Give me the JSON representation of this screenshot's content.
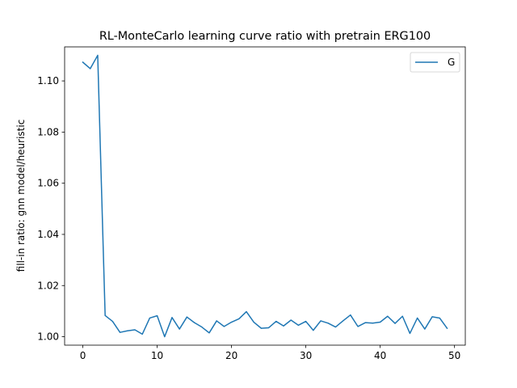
{
  "chart_data": {
    "type": "line",
    "title": "RL-MonteCarlo learning curve ratio with pretrain ERG100",
    "xlabel": "",
    "ylabel": "fill-in ratio: gnn model/heuristic",
    "xlim": [
      -2.45,
      51.45
    ],
    "ylim": [
      0.9967,
      1.1133
    ],
    "xticks": [
      0,
      10,
      20,
      30,
      40,
      50
    ],
    "yticks": [
      1.0,
      1.02,
      1.04,
      1.06,
      1.08,
      1.1
    ],
    "ytick_labels": [
      "1.00",
      "1.02",
      "1.04",
      "1.06",
      "1.08",
      "1.10"
    ],
    "grid": false,
    "legend_position": "top-right",
    "series": [
      {
        "name": "G",
        "color": "#1f77b4",
        "x": [
          0,
          1,
          2,
          3,
          4,
          5,
          6,
          7,
          8,
          9,
          10,
          11,
          12,
          13,
          14,
          15,
          16,
          17,
          18,
          19,
          20,
          21,
          22,
          23,
          24,
          25,
          26,
          27,
          28,
          29,
          30,
          31,
          32,
          33,
          34,
          35,
          36,
          37,
          38,
          39,
          40,
          41,
          42,
          43,
          44,
          45,
          46,
          47,
          48,
          49
        ],
        "values": [
          1.1073,
          1.1048,
          1.11,
          1.0083,
          1.006,
          1.0017,
          1.0023,
          1.0027,
          1.001,
          1.0073,
          1.0082,
          1.0,
          1.0075,
          1.003,
          1.0077,
          1.0055,
          1.0038,
          1.0015,
          1.0062,
          1.004,
          1.0057,
          1.007,
          1.0098,
          1.0057,
          1.0033,
          1.0035,
          1.006,
          1.0042,
          1.0065,
          1.0045,
          1.006,
          1.0025,
          1.0062,
          1.0053,
          1.0038,
          1.0062,
          1.0085,
          1.004,
          1.0055,
          1.0053,
          1.0057,
          1.008,
          1.0052,
          1.008,
          1.0013,
          1.0073,
          1.003,
          1.0078,
          1.0073,
          1.0033
        ]
      }
    ]
  }
}
